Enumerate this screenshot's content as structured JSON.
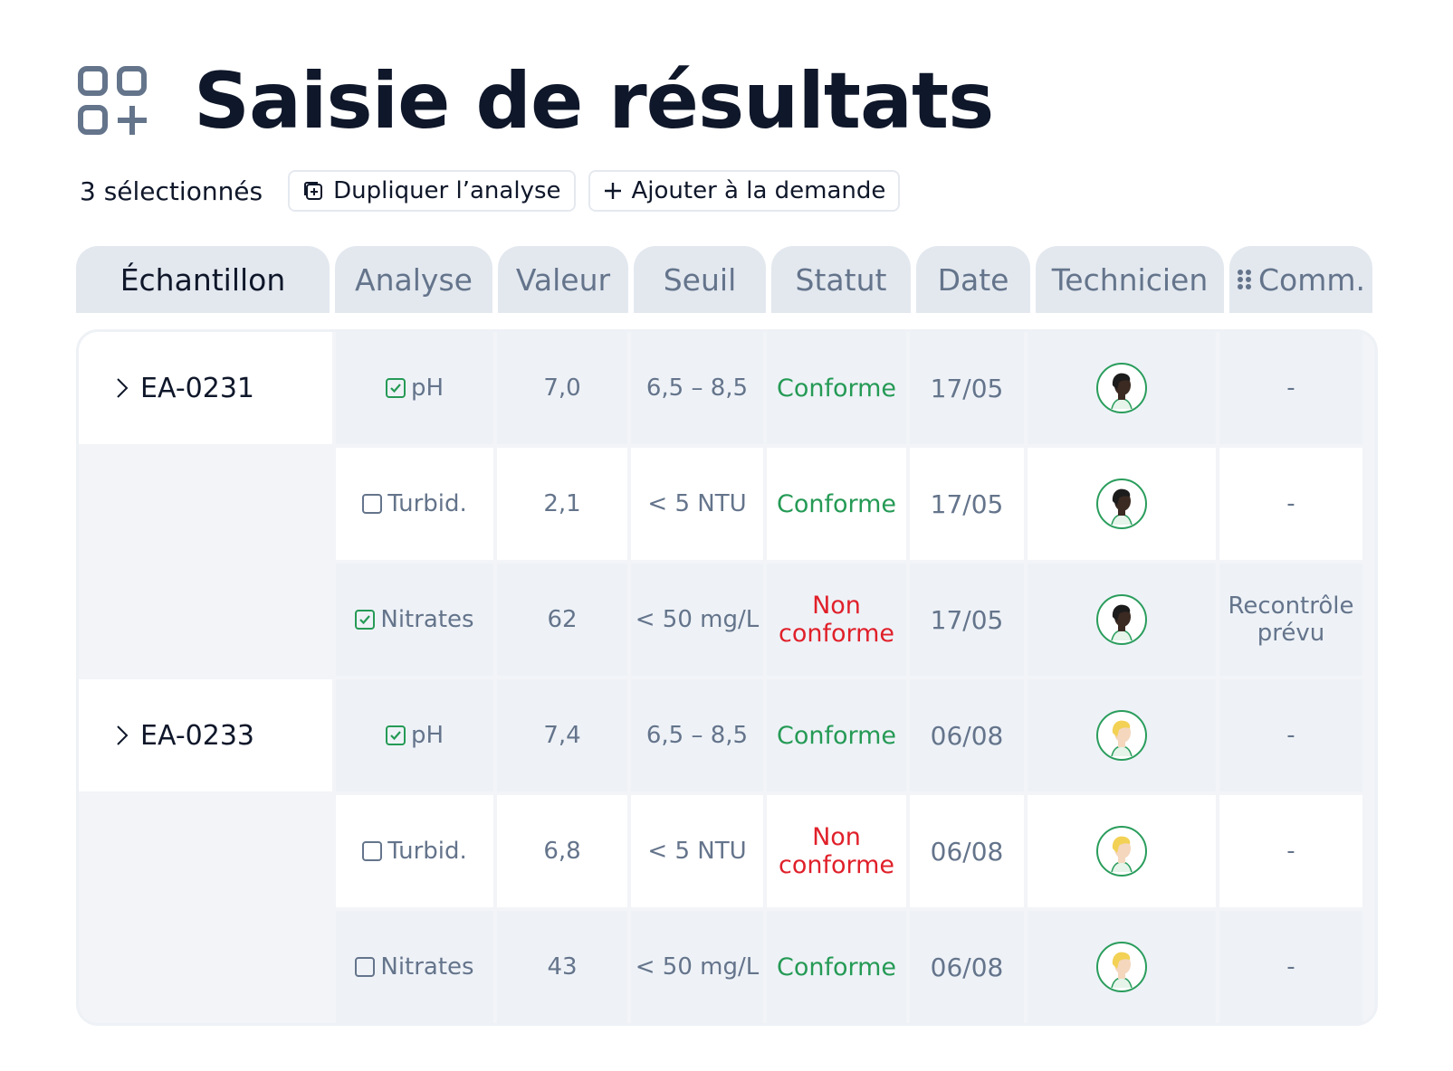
{
  "header": {
    "title": "Saisie de résultats"
  },
  "toolbar": {
    "selected": "3 sélectionnés",
    "actions": [
      "Dupliquer l’analyse",
      "Ajouter à la demande"
    ]
  },
  "table": {
    "columns": [
      "Échantillon",
      "Analyse",
      "Valeur",
      "Seuil",
      "Statut",
      "Date",
      "Technicien",
      "Comm."
    ],
    "groups": [
      {
        "sample": "EA-0231",
        "avatar": {
          "skin": "#3b2a22",
          "hair": "#1c1c1c"
        },
        "rows": [
          {
            "analysis": "pH",
            "checked": true,
            "value": "7,0",
            "threshold": "6,5 – 8,5",
            "status": "Conforme",
            "status_color": "#259a55",
            "date": "17/05",
            "comment": "-"
          },
          {
            "analysis": "Turbid.",
            "checked": false,
            "value": "2,1",
            "threshold": "< 5 NTU",
            "status": "Conforme",
            "status_color": "#259a55",
            "date": "17/05",
            "comment": "-"
          },
          {
            "analysis": "Nitrates",
            "checked": true,
            "value": "62",
            "threshold": "< 50 mg/L",
            "status": "Non conforme",
            "status_color": "#e0202a",
            "date": "17/05",
            "comment": "Recontrôle prévu"
          }
        ]
      },
      {
        "sample": "EA-0233",
        "avatar": {
          "skin": "#f4d7bd",
          "hair": "#f2d154"
        },
        "rows": [
          {
            "analysis": "pH",
            "checked": true,
            "value": "7,4",
            "threshold": "6,5 – 8,5",
            "status": "Conforme",
            "status_color": "#259a55",
            "date": "06/08",
            "comment": "-"
          },
          {
            "analysis": "Turbid.",
            "checked": false,
            "value": "6,8",
            "threshold": "< 5 NTU",
            "status": "Non conforme",
            "status_color": "#e0202a",
            "date": "06/08",
            "comment": "-"
          },
          {
            "analysis": "Nitrates",
            "checked": false,
            "value": "43",
            "threshold": "< 50 mg/L",
            "status": "Conforme",
            "status_color": "#259a55",
            "date": "06/08",
            "comment": "-"
          }
        ]
      }
    ]
  }
}
